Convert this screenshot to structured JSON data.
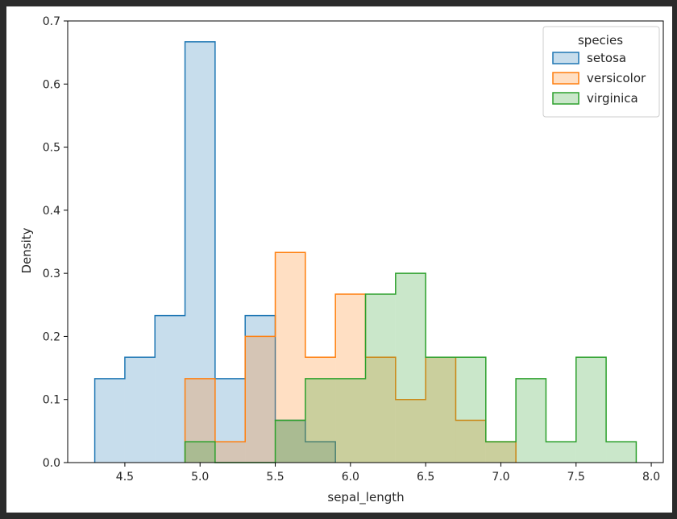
{
  "chart_data": {
    "type": "histogram",
    "xlabel": "sepal_length",
    "ylabel": "Density",
    "xlim": [
      4.12,
      8.08
    ],
    "ylim": [
      0,
      0.7
    ],
    "xticks": [
      "4.5",
      "5.0",
      "5.5",
      "6.0",
      "6.5",
      "7.0",
      "7.5",
      "8.0"
    ],
    "yticks": [
      "0.0",
      "0.1",
      "0.2",
      "0.3",
      "0.4",
      "0.5",
      "0.6",
      "0.7"
    ],
    "bin_edges": [
      4.3,
      4.5,
      4.7,
      4.9,
      5.1,
      5.3,
      5.5,
      5.7,
      5.9,
      6.1,
      6.3,
      6.5,
      6.7,
      6.9,
      7.1,
      7.3,
      7.5,
      7.7,
      7.9
    ],
    "legend": {
      "title": "species",
      "position": "top-right"
    },
    "series": [
      {
        "name": "setosa",
        "color": "#1f77b4",
        "values": [
          0.133,
          0.167,
          0.233,
          0.667,
          0.133,
          0.233,
          0.067,
          0.033,
          0,
          0,
          0,
          0,
          0,
          0,
          0,
          0,
          0,
          0
        ]
      },
      {
        "name": "versicolor",
        "color": "#ff7f0e",
        "values": [
          0,
          0,
          0,
          0.133,
          0.033,
          0.2,
          0.333,
          0.167,
          0.267,
          0.167,
          0.1,
          0.167,
          0.067,
          0.033,
          0,
          0,
          0,
          0
        ]
      },
      {
        "name": "virginica",
        "color": "#2ca02c",
        "values": [
          0,
          0,
          0,
          0.033,
          0,
          0,
          0.067,
          0.133,
          0.133,
          0.267,
          0.3,
          0.167,
          0.167,
          0.033,
          0.133,
          0.033,
          0.167,
          0.033
        ]
      }
    ]
  }
}
